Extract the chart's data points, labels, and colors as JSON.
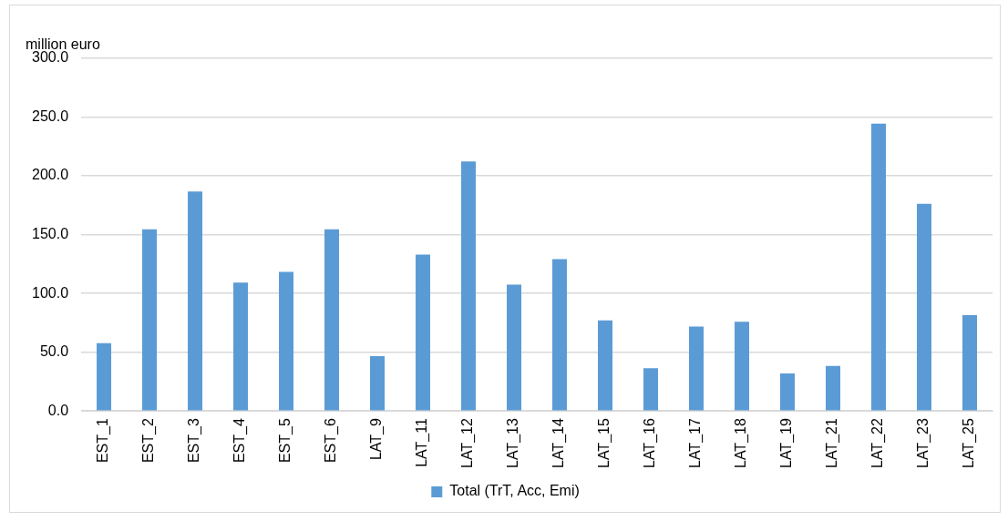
{
  "chart_data": {
    "type": "bar",
    "ylabel": "million euro",
    "categories": [
      "EST_1",
      "EST_2",
      "EST_3",
      "EST_4",
      "EST_5",
      "EST_6",
      "LAT_9",
      "LAT_11",
      "LAT_12",
      "LAT_13",
      "LAT_14",
      "LAT_15",
      "LAT_16",
      "LAT_17",
      "LAT_18",
      "LAT_19",
      "LAT_21",
      "LAT_22",
      "LAT_23",
      "LAT_25"
    ],
    "series": [
      {
        "name": "Total (TrT, Acc, Emi)",
        "color": "#5b9bd5",
        "values": [
          57.7,
          154.5,
          186.7,
          109.2,
          118.2,
          154.5,
          46.7,
          133.1,
          212.3,
          107.5,
          129.2,
          77.0,
          36.3,
          71.8,
          75.9,
          31.9,
          38.2,
          244.4,
          176.2,
          81.4
        ]
      }
    ],
    "ylim": [
      0,
      300
    ],
    "yticks": [
      {
        "value": 0,
        "label": "0.0"
      },
      {
        "value": 50,
        "label": "50.0"
      },
      {
        "value": 100,
        "label": "100.0"
      },
      {
        "value": 150,
        "label": "150.0"
      },
      {
        "value": 200,
        "label": "200.0"
      },
      {
        "value": 250,
        "label": "250.0"
      },
      {
        "value": 300,
        "label": "300.0"
      }
    ],
    "grid": "y",
    "legend": "bottom"
  }
}
